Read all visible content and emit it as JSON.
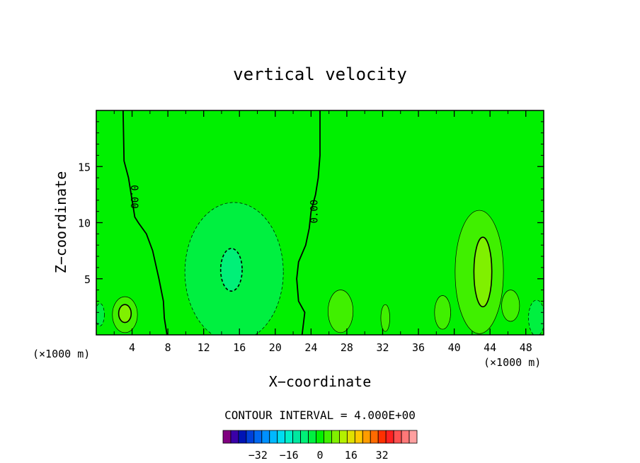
{
  "chart_data": {
    "type": "heatmap",
    "title": "vertical velocity",
    "xlabel": "X−coordinate",
    "ylabel": "Z−coordinate",
    "x_unit": "(×1000 m)",
    "y_unit": "(×1000 m)",
    "xlim": [
      0,
      50
    ],
    "ylim": [
      0,
      20
    ],
    "x_ticks": [
      4,
      8,
      12,
      16,
      20,
      24,
      28,
      32,
      36,
      40,
      44,
      48
    ],
    "x_tick_labels": [
      "4",
      "8",
      "12",
      "16",
      "20",
      "24",
      "28",
      "32",
      "36",
      "40",
      "44",
      "48"
    ],
    "y_ticks": [
      5,
      10,
      15
    ],
    "y_tick_labels": [
      "5",
      "10",
      "15"
    ],
    "contour_interval_label": "CONTOUR INTERVAL = 4.000E+00",
    "contour_interval": 4,
    "contour_labels": [
      {
        "text": "0.00",
        "x": 4.2,
        "y": 12.3
      },
      {
        "text": "0.00",
        "x": 24.4,
        "y": 11.0
      }
    ],
    "background_field_value": 0,
    "zero_contours": [
      {
        "x": [
          3.0,
          3.1,
          3.6,
          4.0,
          4.3,
          4.7,
          5.6,
          6.3,
          7.0,
          7.5,
          7.6,
          7.9
        ],
        "y": [
          20,
          15.5,
          14.0,
          12.0,
          10.5,
          10.0,
          9.0,
          7.5,
          5.0,
          3.0,
          1.5,
          0
        ]
      },
      {
        "x": [
          25.0,
          25.0,
          24.8,
          24.5,
          24.0,
          23.8,
          23.4,
          22.6,
          22.4,
          22.6,
          23.3,
          23.0
        ],
        "y": [
          20,
          16.0,
          14.0,
          12.5,
          11.0,
          9.5,
          8.0,
          6.5,
          5.0,
          3.0,
          2.0,
          0
        ]
      }
    ],
    "features": [
      {
        "name": "downdraft-outer",
        "value": -4,
        "center_x": 15.4,
        "center_y": 5.6,
        "rx": 5.5,
        "ry": 6.2
      },
      {
        "name": "downdraft-inner",
        "value": -8,
        "center_x": 15.1,
        "center_y": 5.8,
        "rx": 1.2,
        "ry": 1.9
      },
      {
        "name": "updraft-left-outer",
        "value": 4,
        "center_x": 3.2,
        "center_y": 1.8,
        "rx": 1.4,
        "ry": 1.6
      },
      {
        "name": "updraft-left-inner",
        "value": 8,
        "center_x": 3.2,
        "center_y": 1.9,
        "rx": 0.7,
        "ry": 0.8
      },
      {
        "name": "updraft-28",
        "value": 4,
        "center_x": 27.3,
        "center_y": 2.1,
        "rx": 1.4,
        "ry": 1.9
      },
      {
        "name": "updraft-32",
        "value": 4,
        "center_x": 32.3,
        "center_y": 1.5,
        "rx": 0.5,
        "ry": 1.2
      },
      {
        "name": "updraft-39",
        "value": 4,
        "center_x": 38.7,
        "center_y": 2.0,
        "rx": 0.9,
        "ry": 1.5
      },
      {
        "name": "updraft-43-outer",
        "value": 4,
        "center_x": 42.8,
        "center_y": 5.6,
        "rx": 2.7,
        "ry": 5.5
      },
      {
        "name": "updraft-43-inner",
        "value": 8,
        "center_x": 43.2,
        "center_y": 5.6,
        "rx": 1.0,
        "ry": 3.1
      },
      {
        "name": "updraft-46",
        "value": 4,
        "center_x": 46.3,
        "center_y": 2.6,
        "rx": 1.0,
        "ry": 1.4
      },
      {
        "name": "downdraft-right",
        "value": -4,
        "center_x": 49.2,
        "center_y": 1.5,
        "rx": 0.9,
        "ry": 1.6
      },
      {
        "name": "downdraft-left-edge",
        "value": -4,
        "center_x": 0.4,
        "center_y": 1.8,
        "rx": 0.5,
        "ry": 1.0
      }
    ],
    "colorbar": {
      "tick_values": [
        -32,
        -16,
        0,
        16,
        32
      ],
      "tick_labels": [
        "−32",
        "−16",
        "0",
        "16",
        "32"
      ],
      "colors": [
        "#800080",
        "#3a00a8",
        "#0014b4",
        "#0040d8",
        "#0068f0",
        "#0090ff",
        "#00b8ff",
        "#00dcf0",
        "#00f0c8",
        "#00e8a0",
        "#00f078",
        "#00f040",
        "#00f000",
        "#40f000",
        "#80f000",
        "#b4f000",
        "#e0e000",
        "#ffc800",
        "#ff9c00",
        "#ff6a00",
        "#ff3000",
        "#ff2020",
        "#ff5050",
        "#ff7878",
        "#ffa0a0"
      ]
    }
  }
}
